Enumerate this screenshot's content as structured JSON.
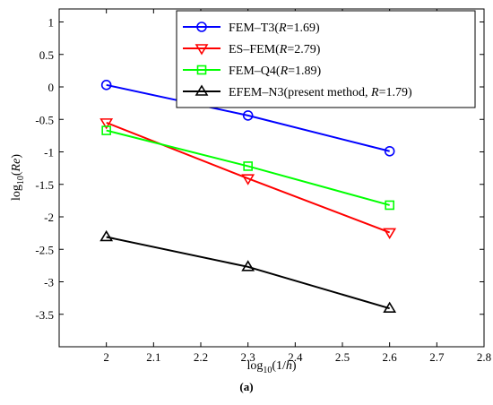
{
  "chart_data": {
    "type": "line",
    "x": [
      2,
      2.3,
      2.6
    ],
    "xlim": [
      1.9,
      2.8
    ],
    "ylim": [
      -4,
      1.2
    ],
    "xticks": [
      "2",
      "2.1",
      "2.2",
      "2.3",
      "2.4",
      "2.5",
      "2.6",
      "2.7",
      "2.8"
    ],
    "yticks": [
      "1",
      "0.5",
      "0",
      "-0.5",
      "-1",
      "-1.5",
      "-2",
      "-2.5",
      "-3",
      "-3.5"
    ],
    "xlabel": {
      "pre": "log",
      "sub": "10",
      "post": "(1/",
      "var": "h",
      "end": ")"
    },
    "ylabel": {
      "pre": "log",
      "sub": "10",
      "post": "(",
      "var": "Re",
      "end": ")"
    },
    "legend_position": "top-right",
    "series": [
      {
        "name": "FEM–T3(R=1.69)",
        "legend_pre": "FEM–T3(",
        "legend_var": "R",
        "legend_post": "=1.69)",
        "color": "#0000ff",
        "marker": "circle",
        "values": [
          0.03,
          -0.44,
          -0.99
        ]
      },
      {
        "name": "ES–FEM(R=2.79)",
        "legend_pre": "ES–FEM(",
        "legend_var": "R",
        "legend_post": "=2.79)",
        "color": "#ff0000",
        "marker": "triangle-down",
        "values": [
          -0.55,
          -1.41,
          -2.24
        ]
      },
      {
        "name": "FEM–Q4(R=1.89)",
        "legend_pre": "FEM–Q4(",
        "legend_var": "R",
        "legend_post": "=1.89)",
        "color": "#00ff00",
        "marker": "square",
        "values": [
          -0.67,
          -1.22,
          -1.82
        ]
      },
      {
        "name": "EFEM–N3(present method, R=1.79)",
        "legend_pre": "EFEM–N3(present method, ",
        "legend_var": "R",
        "legend_post": "=1.79)",
        "color": "#000000",
        "marker": "triangle-up",
        "values": [
          -2.31,
          -2.77,
          -3.41
        ]
      }
    ]
  },
  "caption": "(a)"
}
